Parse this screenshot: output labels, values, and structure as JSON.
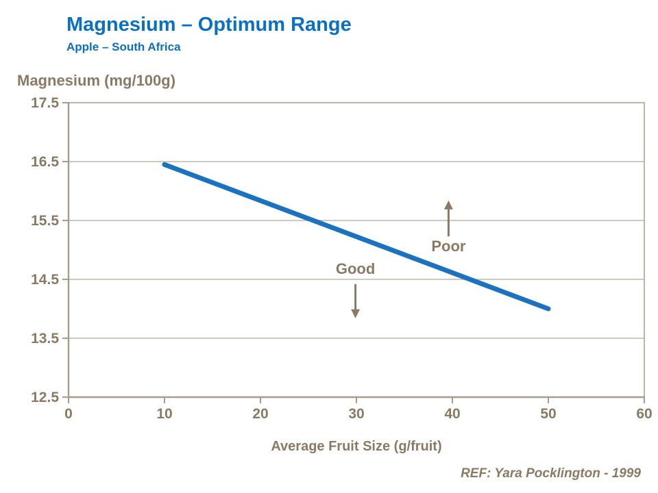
{
  "header": {
    "title": "Magnesium – Optimum Range",
    "subtitle": "Apple – South Africa"
  },
  "chart_data": {
    "type": "line",
    "title": "Magnesium – Optimum Range",
    "xlabel": "Average Fruit Size (g/fruit)",
    "ylabel": "Magnesium (mg/100g)",
    "xlim": [
      0,
      60
    ],
    "ylim": [
      12.5,
      17.5
    ],
    "x_ticks": [
      0,
      10,
      20,
      30,
      40,
      50,
      60
    ],
    "y_ticks": [
      12.5,
      13.5,
      14.5,
      15.5,
      16.5,
      17.5
    ],
    "grid": "horizontal",
    "legend": "none",
    "series": [
      {
        "x": [
          10,
          50
        ],
        "y": [
          16.45,
          14.0
        ],
        "color": "#1b72be",
        "style": "solid-thick"
      }
    ],
    "annotations": [
      {
        "label": "Good",
        "x": 29.9,
        "y": 14.67,
        "arrow": "down",
        "arrow_from_y": 14.42,
        "arrow_to_y": 13.84
      },
      {
        "label": "Poor",
        "x": 39.6,
        "y": 15.06,
        "arrow": "up",
        "arrow_from_y": 15.23,
        "arrow_to_y": 15.84
      }
    ]
  },
  "footer": {
    "ref": "REF: Yara Pocklington - 1999"
  },
  "colors": {
    "title_blue": "#0a70c2",
    "line_blue": "#1b72be",
    "text_brown": "#8a7a64",
    "grid_taupe": "#beb5a8",
    "axis_taupe": "#a69c8d"
  }
}
